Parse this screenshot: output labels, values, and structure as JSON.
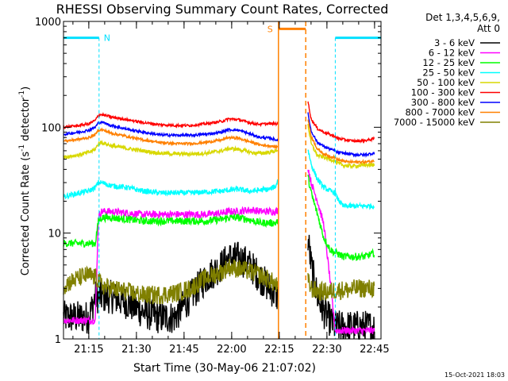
{
  "chart_data": {
    "type": "line",
    "title": "RHESSI Observing Summary Count Rates, Corrected",
    "xlabel": "Start Time (30-May-06 21:07:02)",
    "ylabel_main": "Corrected Count Rate (s",
    "ylabel_sup1": "-1",
    "ylabel_mid": " detector",
    "ylabel_sup2": "-1",
    "ylabel_end": ")",
    "y_scale": "log",
    "ylim": [
      1,
      1000
    ],
    "xlim_minutes": [
      0,
      100
    ],
    "x_ticks": [
      {
        "label": "21:15",
        "minute": 7.97
      },
      {
        "label": "21:30",
        "minute": 22.97
      },
      {
        "label": "21:45",
        "minute": 37.97
      },
      {
        "label": "22:00",
        "minute": 52.97
      },
      {
        "label": "22:15",
        "minute": 67.97
      },
      {
        "label": "22:30",
        "minute": 82.97
      },
      {
        "label": "22:45",
        "minute": 97.97
      }
    ],
    "y_ticks": [
      {
        "label": "1",
        "value": 1
      },
      {
        "label": "10",
        "value": 10
      },
      {
        "label": "100",
        "value": 100
      },
      {
        "label": "1000",
        "value": 1000
      }
    ],
    "legend_header": [
      "Det 1,3,4,5,6,9,",
      "Att 0"
    ],
    "legend_position": "right",
    "series": [
      {
        "name": "3 - 6 keV",
        "color": "#000000"
      },
      {
        "name": "6 - 12 keV",
        "color": "#ff00ff"
      },
      {
        "name": "12 - 25 keV",
        "color": "#00ff00"
      },
      {
        "name": "25 - 50 keV",
        "color": "#00ffff"
      },
      {
        "name": "50 - 100 keV",
        "color": "#d8d800"
      },
      {
        "name": "100 - 300 keV",
        "color": "#ff0000"
      },
      {
        "name": "300 - 800 keV",
        "color": "#0000ff"
      },
      {
        "name": "800 - 7000 keV",
        "color": "#ff8000"
      },
      {
        "name": "7000 - 15000 keV",
        "color": "#808000"
      }
    ],
    "annotations": {
      "night_label": "N",
      "saa_label": "S",
      "night_intervals_minutes": [
        [
          0,
          11.2
        ],
        [
          85.6,
          100
        ]
      ],
      "saa_interval_minutes": [
        67.7,
        76.3
      ]
    },
    "data_points": {
      "x_minutes": [
        0,
        5,
        8,
        10,
        11,
        12,
        15,
        20,
        25,
        30,
        35,
        40,
        45,
        50,
        52,
        55,
        58,
        60,
        62,
        65,
        67,
        67.6,
        76.3,
        77,
        78,
        80,
        82,
        84,
        85.6,
        86,
        88,
        90,
        92,
        95,
        98
      ],
      "3 - 6 keV": [
        1.6,
        1.6,
        1.6,
        2.5,
        2.5,
        2.5,
        2.5,
        2.2,
        1.8,
        1.6,
        1.6,
        2.5,
        3.8,
        5.0,
        5.8,
        5.8,
        5.2,
        4.5,
        3.8,
        3.0,
        2.6,
        2.5,
        null,
        9.0,
        5.0,
        2.5,
        1.8,
        1.5,
        1.3,
        1.3,
        1.3,
        1.3,
        1.3,
        1.3,
        1.3
      ],
      "6 - 12 keV": [
        1.5,
        1.5,
        1.5,
        1.5,
        14.5,
        16,
        16,
        15.5,
        15,
        15,
        15,
        15,
        15,
        15.5,
        16,
        16,
        16.5,
        16.5,
        16,
        16,
        16,
        16.5,
        null,
        42,
        30,
        20,
        12,
        3.5,
        1.2,
        1.2,
        1.2,
        1.2,
        1.2,
        1.2,
        1.2
      ],
      "12 - 25 keV": [
        8,
        8,
        8,
        8,
        13,
        14,
        14,
        13.5,
        13,
        13,
        13,
        13,
        13,
        13.5,
        14,
        14,
        13.5,
        13,
        12.5,
        12.5,
        12.5,
        13,
        null,
        34,
        24,
        15,
        9,
        7,
        6.5,
        6.5,
        6,
        6,
        6,
        6,
        6.5
      ],
      "25 - 50 keV": [
        22,
        24,
        25,
        27,
        30,
        30,
        28,
        27,
        25,
        24,
        24,
        24,
        24.5,
        25,
        25.5,
        26,
        25,
        25,
        25.5,
        26,
        28,
        34,
        null,
        62,
        45,
        32,
        27,
        25,
        24,
        22,
        18,
        18,
        18,
        18,
        18
      ],
      "50 - 100 keV": [
        52,
        55,
        58,
        62,
        70,
        72,
        67,
        63,
        60,
        57,
        56,
        56,
        57,
        60,
        63,
        62,
        59,
        57,
        57,
        58,
        60,
        62,
        null,
        105,
        70,
        54,
        52,
        50,
        48,
        46,
        44,
        43,
        43,
        44,
        44
      ],
      "100 - 300 keV": [
        100,
        104,
        108,
        116,
        130,
        132,
        125,
        118,
        111,
        106,
        104,
        104,
        108,
        114,
        120,
        118,
        112,
        108,
        107,
        108,
        108,
        110,
        null,
        175,
        120,
        97,
        90,
        85,
        82,
        79,
        77,
        75,
        74,
        75,
        78
      ],
      "300 - 800 keV": [
        86,
        90,
        94,
        100,
        110,
        112,
        104,
        96,
        90,
        85,
        84,
        84,
        86,
        90,
        95,
        94,
        88,
        84,
        80,
        79,
        76,
        76,
        null,
        135,
        92,
        72,
        66,
        62,
        60,
        58,
        57,
        56,
        55,
        55,
        57
      ],
      "800 - 7000 keV": [
        74,
        77,
        80,
        85,
        94,
        95,
        88,
        82,
        76,
        72,
        70,
        70,
        72,
        76,
        80,
        79,
        74,
        71,
        68,
        67,
        65,
        66,
        null,
        120,
        82,
        62,
        56,
        53,
        52,
        50,
        48,
        47,
        47,
        47,
        48
      ],
      "7000 - 15000 keV": [
        3.2,
        3.8,
        4.0,
        3.8,
        3.6,
        3.2,
        3.0,
        2.8,
        2.6,
        2.6,
        2.7,
        3.0,
        3.8,
        4.3,
        4.8,
        4.6,
        4.4,
        4.2,
        4.0,
        3.6,
        3.2,
        3.0,
        null,
        3.5,
        3.0,
        2.8,
        2.8,
        2.8,
        2.9,
        2.9,
        2.9,
        2.9,
        3.0,
        3.0,
        3.0
      ]
    }
  },
  "footer": {
    "timestamp": "15-Oct-2021 18:03"
  }
}
